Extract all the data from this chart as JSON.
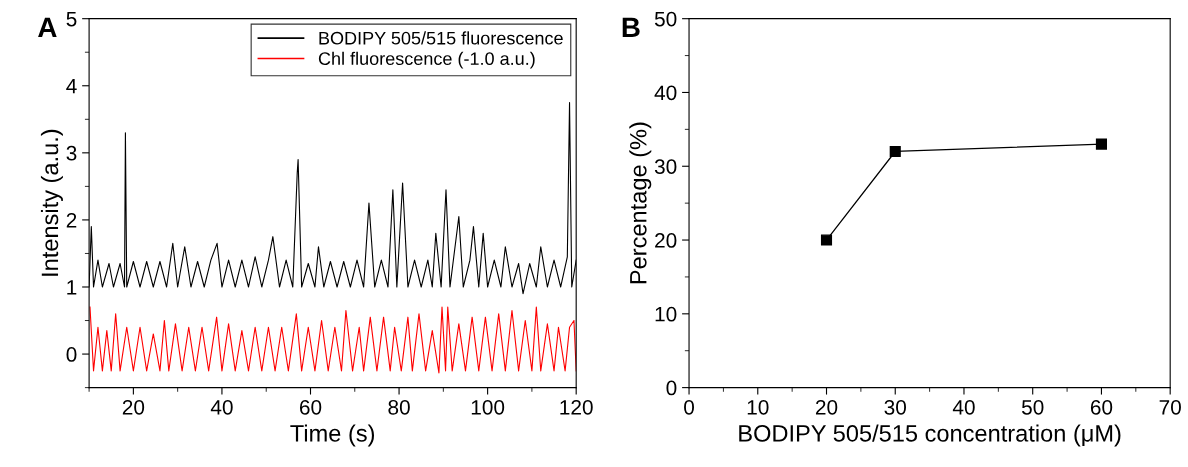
{
  "chart_data": [
    {
      "type": "line",
      "title": "A",
      "xlabel": "Time (s)",
      "ylabel": "Intensity (a.u.)",
      "xlim": [
        10,
        120
      ],
      "xticks": [
        20,
        40,
        60,
        80,
        100,
        120
      ],
      "ylim": [
        -0.5,
        5
      ],
      "yticks": [
        0,
        1,
        2,
        3,
        4,
        5
      ],
      "legend": "top right",
      "grid": false,
      "marker": "none",
      "series": [
        {
          "name": "BODIPY 505/515 fluorescence",
          "color": "#000000",
          "x": [
            10,
            10.5,
            11,
            12,
            13,
            14.5,
            15.5,
            17,
            18,
            18.2,
            18.5,
            20,
            21.5,
            23,
            24.5,
            26,
            27.5,
            28.9,
            30,
            31.6,
            33,
            34.5,
            36,
            37.5,
            38.9,
            40,
            41.5,
            43,
            44.5,
            46,
            47.5,
            49,
            50.5,
            51.5,
            53,
            54.5,
            56,
            57,
            57.2,
            58,
            59.5,
            61,
            61.8,
            63,
            64.5,
            66,
            67.5,
            69,
            70.5,
            72,
            73.2,
            74.5,
            76,
            77.5,
            78.6,
            79.5,
            80.8,
            82,
            83.5,
            85,
            86.5,
            87.5,
            88.3,
            89.5,
            90.6,
            91.5,
            93.5,
            94.5,
            96,
            96.8,
            98,
            99,
            100,
            101.5,
            103,
            104,
            105.5,
            107,
            108,
            109.5,
            111,
            112,
            113.5,
            115,
            116.5,
            118,
            118.5,
            119,
            120
          ],
          "values": [
            1.0,
            1.9,
            1.0,
            1.4,
            1.0,
            1.35,
            1.0,
            1.35,
            1.0,
            3.3,
            1.0,
            1.38,
            1.0,
            1.38,
            1.0,
            1.38,
            1.0,
            1.65,
            1.0,
            1.6,
            1.0,
            1.38,
            1.0,
            1.4,
            1.65,
            1.0,
            1.4,
            1.0,
            1.4,
            1.0,
            1.45,
            1.0,
            1.4,
            1.75,
            1.0,
            1.4,
            1.0,
            2.7,
            2.9,
            1.0,
            1.35,
            1.0,
            1.6,
            1.0,
            1.38,
            1.0,
            1.38,
            1.0,
            1.4,
            1.0,
            2.25,
            1.0,
            1.4,
            1.0,
            2.45,
            1.0,
            2.55,
            1.0,
            1.4,
            1.0,
            1.4,
            1.0,
            1.8,
            1.0,
            2.45,
            1.0,
            2.05,
            1.0,
            1.4,
            1.9,
            1.0,
            1.8,
            1.0,
            1.4,
            1.0,
            1.6,
            1.0,
            1.35,
            0.9,
            1.35,
            1.0,
            1.6,
            1.0,
            1.4,
            1.0,
            1.45,
            3.75,
            1.0,
            1.4
          ]
        },
        {
          "name": "Chl fluorescence (-1.0 a.u.)",
          "color": "#ff0000",
          "x": [
            10.2,
            11,
            12,
            13,
            14,
            15,
            16,
            17,
            18.5,
            20,
            21.5,
            23,
            24.5,
            26,
            27,
            28,
            29.5,
            31,
            32.5,
            34,
            35.5,
            37,
            38.8,
            40,
            41.5,
            43,
            44.5,
            46,
            47.5,
            49,
            50.5,
            52,
            53.5,
            55,
            56.8,
            58,
            59.5,
            61,
            62.5,
            64,
            65.5,
            67,
            68,
            69.5,
            71,
            72,
            73.5,
            75,
            76.5,
            78,
            79,
            80.5,
            82,
            83,
            84.5,
            86,
            87.5,
            89,
            89.7,
            90.5,
            91,
            92,
            93.5,
            95,
            96.5,
            98,
            99.5,
            101,
            102.5,
            104,
            105.5,
            107,
            108.5,
            110,
            111,
            112,
            113.5,
            115,
            116,
            117.5,
            118.5,
            119.5,
            120
          ],
          "values": [
            0.7,
            -0.25,
            0.4,
            -0.25,
            0.35,
            -0.25,
            0.6,
            -0.25,
            0.4,
            -0.25,
            0.4,
            -0.25,
            0.3,
            -0.25,
            0.5,
            -0.25,
            0.45,
            -0.25,
            0.4,
            -0.25,
            0.4,
            -0.25,
            0.55,
            -0.25,
            0.45,
            -0.25,
            0.35,
            -0.25,
            0.4,
            -0.25,
            0.4,
            -0.25,
            0.4,
            -0.25,
            0.6,
            -0.25,
            0.4,
            -0.25,
            0.5,
            -0.25,
            0.4,
            -0.25,
            0.65,
            -0.25,
            0.4,
            -0.25,
            0.55,
            -0.25,
            0.55,
            -0.25,
            0.4,
            -0.25,
            0.55,
            -0.25,
            0.6,
            -0.25,
            0.35,
            -0.28,
            0.7,
            -0.25,
            0.7,
            -0.25,
            0.45,
            -0.25,
            0.55,
            -0.25,
            0.55,
            -0.25,
            0.6,
            -0.25,
            0.65,
            -0.25,
            0.5,
            -0.25,
            0.7,
            -0.25,
            0.45,
            -0.25,
            0.4,
            -0.25,
            0.4,
            0.5,
            -0.25
          ]
        }
      ]
    },
    {
      "type": "line",
      "title": "B",
      "xlabel": "BODIPY 505/515 concentration (μM)",
      "ylabel": "Percentage (%)",
      "xlim": [
        0,
        70
      ],
      "xticks": [
        0,
        10,
        20,
        30,
        40,
        50,
        60,
        70
      ],
      "ylim": [
        0,
        50
      ],
      "yticks": [
        0,
        10,
        20,
        30,
        40,
        50
      ],
      "grid": false,
      "marker": "square",
      "x": [
        20,
        30,
        60
      ],
      "series": [
        {
          "color": "#000000",
          "values": [
            20,
            32,
            33
          ]
        }
      ]
    }
  ]
}
